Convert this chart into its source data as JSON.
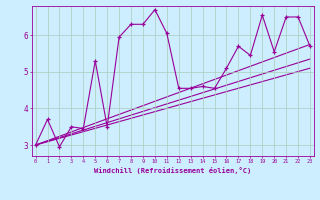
{
  "xlabel": "Windchill (Refroidissement éolien,°C)",
  "ylabel": "",
  "background_color": "#cceeff",
  "line_color": "#990099",
  "grid_color": "#aaccbb",
  "xticks": [
    0,
    1,
    2,
    3,
    4,
    5,
    6,
    7,
    8,
    9,
    10,
    11,
    12,
    13,
    14,
    15,
    16,
    17,
    18,
    19,
    20,
    21,
    22,
    23
  ],
  "yticks": [
    3,
    4,
    5,
    6
  ],
  "ylim": [
    2.7,
    6.8
  ],
  "xlim": [
    -0.3,
    23.3
  ],
  "series": [
    [
      0,
      3.0
    ],
    [
      1,
      3.7
    ],
    [
      2,
      2.95
    ],
    [
      3,
      3.5
    ],
    [
      4,
      3.45
    ],
    [
      5,
      5.3
    ],
    [
      6,
      3.5
    ],
    [
      7,
      5.95
    ],
    [
      8,
      6.3
    ],
    [
      9,
      6.3
    ],
    [
      10,
      6.7
    ],
    [
      11,
      6.05
    ],
    [
      12,
      4.55
    ],
    [
      13,
      4.55
    ],
    [
      14,
      4.6
    ],
    [
      15,
      4.55
    ],
    [
      16,
      5.1
    ],
    [
      17,
      5.7
    ],
    [
      18,
      5.45
    ],
    [
      19,
      6.55
    ],
    [
      20,
      5.55
    ],
    [
      21,
      6.5
    ],
    [
      22,
      6.5
    ],
    [
      23,
      5.7
    ]
  ],
  "regression_lines": [
    {
      "x": [
        0,
        23
      ],
      "y": [
        3.0,
        5.75
      ]
    },
    {
      "x": [
        0,
        23
      ],
      "y": [
        3.0,
        5.35
      ]
    },
    {
      "x": [
        0,
        23
      ],
      "y": [
        3.0,
        5.1
      ]
    }
  ]
}
